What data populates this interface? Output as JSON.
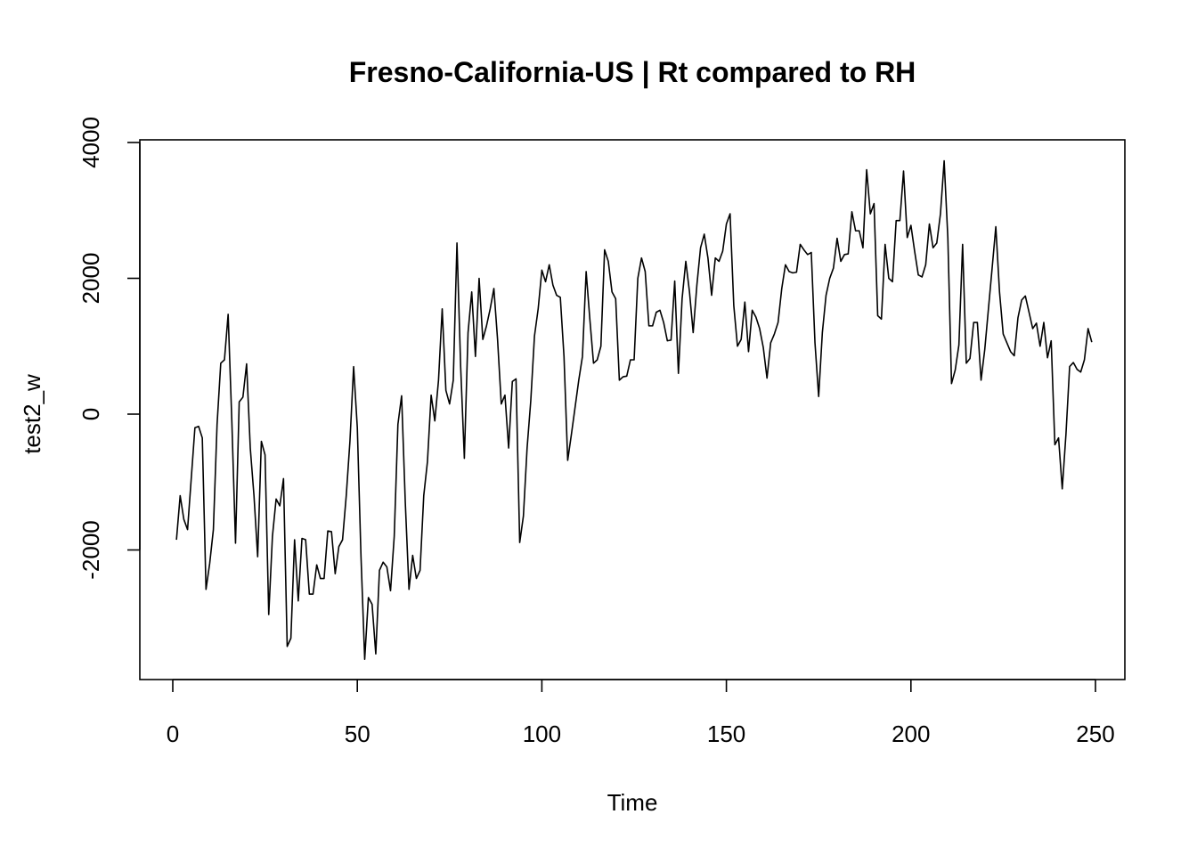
{
  "chart_data": {
    "type": "line",
    "title": "Fresno-California-US | Rt compared to RH",
    "xlabel": "Time",
    "ylabel": "test2_w",
    "xlim": [
      0,
      250
    ],
    "ylim": [
      -4000,
      4000
    ],
    "x_ticks": [
      0,
      50,
      100,
      150,
      200,
      250
    ],
    "y_ticks": [
      -2000,
      0,
      2000,
      4000
    ],
    "x_tick_labels": [
      "0",
      "50",
      "100",
      "150",
      "200",
      "250"
    ],
    "y_tick_labels": [
      "-2000",
      "0",
      "2000",
      "4000"
    ],
    "grid": false,
    "line_color": "#000000",
    "series": [
      {
        "x_start": 1,
        "x_step": 1,
        "values": [
          -1850,
          -1200,
          -1550,
          -1700,
          -950,
          -200,
          -180,
          -350,
          -2580,
          -2200,
          -1700,
          -150,
          750,
          800,
          1470,
          -100,
          -1900,
          180,
          250,
          740,
          -500,
          -1200,
          -2100,
          -400,
          -600,
          -2950,
          -1800,
          -1250,
          -1350,
          -950,
          -3420,
          -3300,
          -1850,
          -2750,
          -1830,
          -1850,
          -2650,
          -2650,
          -2220,
          -2420,
          -2420,
          -1720,
          -1730,
          -2350,
          -1950,
          -1850,
          -1200,
          -400,
          700,
          -200,
          -2100,
          -3610,
          -2700,
          -2800,
          -3530,
          -2300,
          -2180,
          -2250,
          -2600,
          -1800,
          -150,
          270,
          -1300,
          -2580,
          -2080,
          -2420,
          -2300,
          -1200,
          -700,
          280,
          -100,
          500,
          1550,
          350,
          150,
          500,
          2520,
          700,
          -650,
          1200,
          1800,
          850,
          2000,
          1100,
          1300,
          1550,
          1850,
          1100,
          150,
          280,
          -500,
          480,
          520,
          -1890,
          -1500,
          -500,
          200,
          1150,
          1550,
          2120,
          1950,
          2200,
          1900,
          1750,
          1720,
          850,
          -680,
          -300,
          100,
          500,
          850,
          2100,
          1400,
          750,
          800,
          1000,
          2420,
          2250,
          1800,
          1700,
          500,
          550,
          560,
          800,
          800,
          2000,
          2300,
          2100,
          1300,
          1300,
          1500,
          1530,
          1350,
          1080,
          1090,
          1960,
          600,
          1700,
          2250,
          1800,
          1200,
          1900,
          2450,
          2650,
          2300,
          1750,
          2300,
          2250,
          2400,
          2800,
          2950,
          1600,
          1000,
          1100,
          1650,
          920,
          1530,
          1430,
          1260,
          980,
          530,
          1050,
          1180,
          1350,
          1850,
          2200,
          2100,
          2080,
          2090,
          2500,
          2420,
          2350,
          2380,
          1050,
          260,
          1200,
          1750,
          2000,
          2150,
          2590,
          2250,
          2350,
          2360,
          2980,
          2700,
          2700,
          2450,
          3600,
          2950,
          3100,
          1450,
          1400,
          2500,
          2000,
          1950,
          2850,
          2850,
          3580,
          2600,
          2780,
          2400,
          2050,
          2020,
          2200,
          2800,
          2450,
          2520,
          2950,
          3730,
          2600,
          450,
          650,
          1020,
          2500,
          750,
          820,
          1350,
          1350,
          500,
          950,
          1550,
          2150,
          2760,
          1800,
          1180,
          1050,
          920,
          860,
          1420,
          1680,
          1740,
          1500,
          1260,
          1340,
          1000,
          1350,
          830,
          1080,
          -450,
          -350,
          -1100,
          -300,
          700,
          760,
          660,
          620,
          800,
          1260,
          1060
        ]
      }
    ]
  }
}
